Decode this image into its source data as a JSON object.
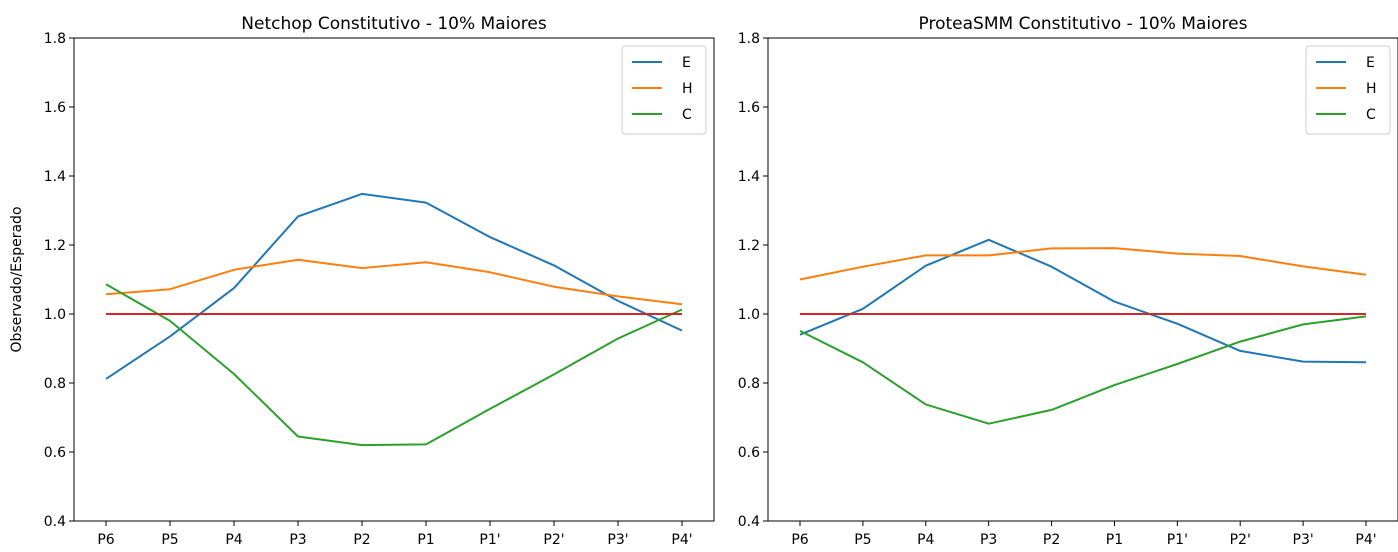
{
  "chart_data": [
    {
      "type": "line",
      "title": "Netchop Constitutivo - 10% Maiores",
      "xlabel": "",
      "ylabel": "Observado/Esperado",
      "categories": [
        "P6",
        "P5",
        "P4",
        "P3",
        "P2",
        "P1",
        "P1'",
        "P2'",
        "P3'",
        "P4'"
      ],
      "ylim": [
        0.4,
        1.8
      ],
      "yticks": [
        "0.4",
        "0.6",
        "0.8",
        "1.0",
        "1.2",
        "1.4",
        "1.6",
        "1.8"
      ],
      "grid": false,
      "legend_position": "upper right",
      "series": [
        {
          "name": "E",
          "color": "#1f77b4",
          "values": [
            0.812,
            0.935,
            1.075,
            1.283,
            1.348,
            1.323,
            1.223,
            1.141,
            1.038,
            0.952
          ]
        },
        {
          "name": "H",
          "color": "#ff7f0e",
          "values": [
            1.057,
            1.072,
            1.128,
            1.157,
            1.133,
            1.15,
            1.121,
            1.079,
            1.051,
            1.028
          ]
        },
        {
          "name": "C",
          "color": "#2ca02c",
          "values": [
            1.086,
            0.98,
            0.826,
            0.645,
            0.62,
            0.622,
            0.725,
            0.825,
            0.929,
            1.013
          ]
        }
      ],
      "reference_line": {
        "value": 1.0,
        "color": "#d62728"
      }
    },
    {
      "type": "line",
      "title": "ProteaSMM Constitutivo - 10% Maiores",
      "xlabel": "",
      "ylabel": "",
      "categories": [
        "P6",
        "P5",
        "P4",
        "P3",
        "P2",
        "P1",
        "P1'",
        "P2'",
        "P3'",
        "P4'"
      ],
      "ylim": [
        0.4,
        1.8
      ],
      "yticks": [
        "0.4",
        "0.6",
        "0.8",
        "1.0",
        "1.2",
        "1.4",
        "1.6",
        "1.8"
      ],
      "grid": false,
      "legend_position": "upper right",
      "series": [
        {
          "name": "E",
          "color": "#1f77b4",
          "values": [
            0.94,
            1.015,
            1.14,
            1.215,
            1.137,
            1.036,
            0.972,
            0.893,
            0.862,
            0.86
          ]
        },
        {
          "name": "H",
          "color": "#ff7f0e",
          "values": [
            1.1,
            1.137,
            1.17,
            1.17,
            1.19,
            1.191,
            1.175,
            1.168,
            1.138,
            1.114
          ]
        },
        {
          "name": "C",
          "color": "#2ca02c",
          "values": [
            0.951,
            0.86,
            0.738,
            0.682,
            0.722,
            0.794,
            0.855,
            0.92,
            0.97,
            0.993
          ]
        }
      ],
      "reference_line": {
        "value": 1.0,
        "color": "#d62728"
      }
    }
  ]
}
